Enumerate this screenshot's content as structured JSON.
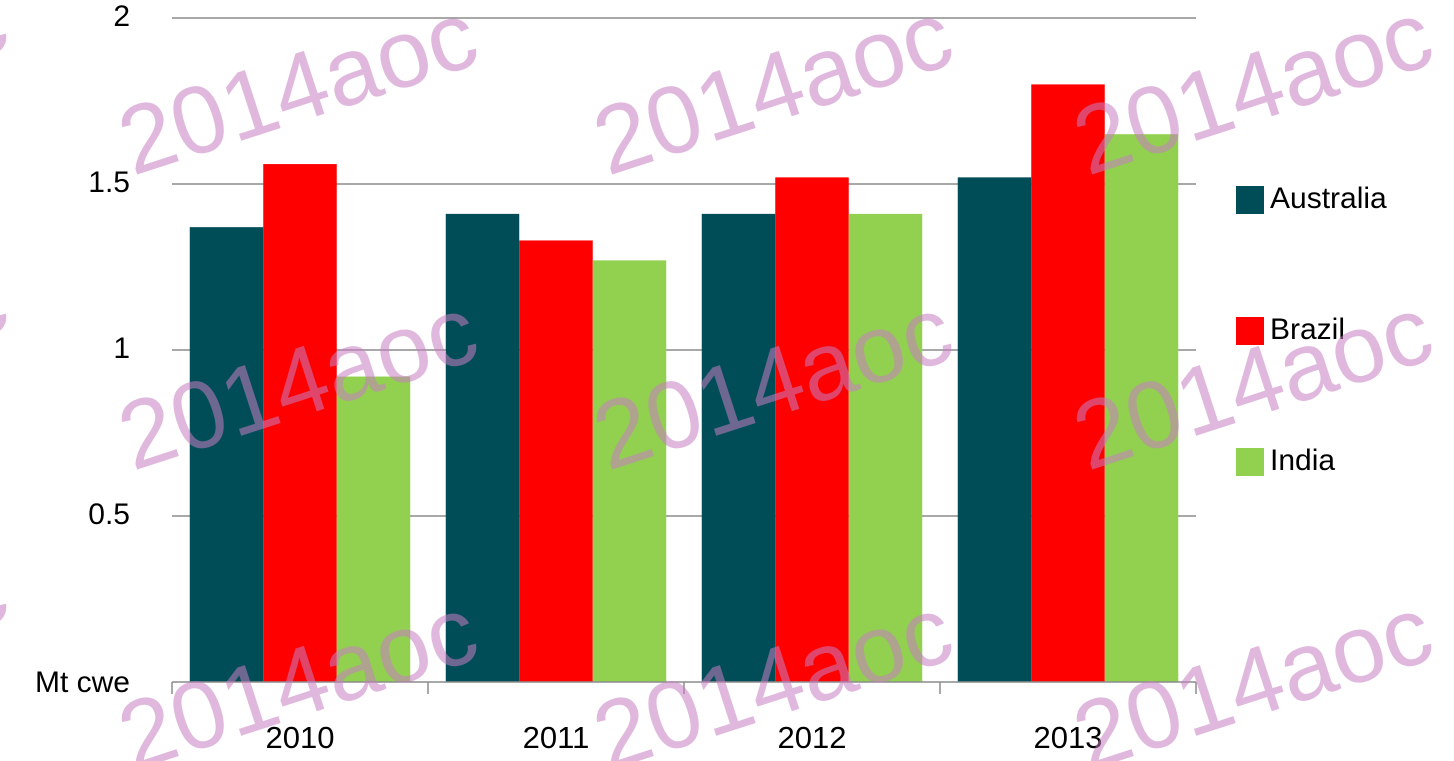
{
  "chart_data": {
    "type": "bar",
    "y_label": "Mt cwe",
    "watermark": "2014aoc",
    "categories": [
      "2010",
      "2011",
      "2012",
      "2013"
    ],
    "series": [
      {
        "name": "Australia",
        "color": "#004d57",
        "values": [
          1.37,
          1.41,
          1.41,
          1.52
        ]
      },
      {
        "name": "Brazil",
        "color": "#ff0000",
        "values": [
          1.56,
          1.33,
          1.52,
          1.8
        ]
      },
      {
        "name": "India",
        "color": "#92d050",
        "values": [
          0.92,
          1.27,
          1.41,
          1.65
        ]
      }
    ],
    "ylim": [
      0,
      2
    ],
    "yticks": [
      0.5,
      1,
      1.5,
      2
    ],
    "grid": true,
    "legend": "right"
  }
}
